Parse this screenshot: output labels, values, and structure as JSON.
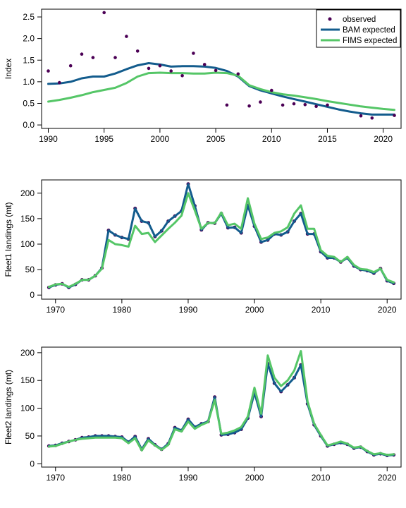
{
  "colors": {
    "observed": "#4b0055",
    "bam": "#135c8d",
    "fims": "#55c667"
  },
  "chart_data": [
    {
      "type": "line",
      "ylabel": "Index",
      "xlim": [
        1989.4,
        2021.6
      ],
      "ylim": [
        -0.08,
        2.68
      ],
      "xticks": [
        1990,
        1995,
        2000,
        2005,
        2010,
        2015,
        2020
      ],
      "yticks": [
        0.0,
        0.5,
        1.0,
        1.5,
        2.0,
        2.5
      ],
      "ytick_labels": [
        "0.0",
        "0.5",
        "1.0",
        "1.5",
        "2.0",
        "2.5"
      ],
      "legend": {
        "position": "top-right",
        "entries": [
          {
            "label": "observed",
            "kind": "point",
            "series": "observed"
          },
          {
            "label": "BAM expected",
            "kind": "line",
            "series": "bam"
          },
          {
            "label": "FIMS expected",
            "kind": "line",
            "series": "fims"
          }
        ]
      },
      "x": [
        1990,
        1991,
        1992,
        1993,
        1994,
        1995,
        1996,
        1997,
        1998,
        1999,
        2000,
        2001,
        2002,
        2003,
        2004,
        2005,
        2006,
        2007,
        2008,
        2009,
        2010,
        2011,
        2012,
        2013,
        2014,
        2015,
        2016,
        2017,
        2018,
        2019,
        2020,
        2021
      ],
      "series": [
        {
          "name": "observed",
          "key": "observed",
          "style": "points",
          "values": [
            1.25,
            0.98,
            1.37,
            1.64,
            1.56,
            2.6,
            1.56,
            2.05,
            1.71,
            1.31,
            1.37,
            1.25,
            1.14,
            1.66,
            1.4,
            1.26,
            0.46,
            1.18,
            0.44,
            0.53,
            0.8,
            0.46,
            0.49,
            0.47,
            0.43,
            0.46,
            null,
            null,
            0.21,
            0.16,
            null,
            0.22
          ]
        },
        {
          "name": "BAM expected",
          "key": "bam",
          "style": "line",
          "values": [
            0.95,
            0.96,
            1.0,
            1.08,
            1.12,
            1.12,
            1.19,
            1.29,
            1.38,
            1.43,
            1.4,
            1.35,
            1.36,
            1.36,
            1.35,
            1.32,
            1.25,
            1.12,
            0.9,
            0.8,
            0.73,
            0.66,
            0.6,
            0.54,
            0.48,
            0.42,
            0.36,
            0.31,
            0.27,
            0.24,
            0.24,
            0.24
          ]
        },
        {
          "name": "FIMS expected",
          "key": "fims",
          "style": "line",
          "values": [
            0.54,
            0.58,
            0.63,
            0.69,
            0.76,
            0.81,
            0.86,
            0.97,
            1.12,
            1.2,
            1.21,
            1.2,
            1.2,
            1.19,
            1.19,
            1.21,
            1.2,
            1.14,
            0.92,
            0.83,
            0.76,
            0.71,
            0.68,
            0.64,
            0.6,
            0.55,
            0.51,
            0.47,
            0.43,
            0.4,
            0.37,
            0.35
          ]
        }
      ]
    },
    {
      "type": "line",
      "ylabel": "Fleet1 landings (mt)",
      "xlim": [
        1967.9,
        2022.1
      ],
      "ylim": [
        -8,
        226
      ],
      "xticks": [
        1970,
        1980,
        1990,
        2000,
        2010,
        2020
      ],
      "yticks": [
        0,
        50,
        100,
        150,
        200
      ],
      "ytick_labels": [
        "0",
        "50",
        "100",
        "150",
        "200"
      ],
      "x": [
        1969,
        1970,
        1971,
        1972,
        1973,
        1974,
        1975,
        1976,
        1977,
        1978,
        1979,
        1980,
        1981,
        1982,
        1983,
        1984,
        1985,
        1986,
        1987,
        1988,
        1989,
        1990,
        1991,
        1992,
        1993,
        1994,
        1995,
        1996,
        1997,
        1998,
        1999,
        2000,
        2001,
        2002,
        2003,
        2004,
        2005,
        2006,
        2007,
        2008,
        2009,
        2010,
        2011,
        2012,
        2013,
        2014,
        2015,
        2016,
        2017,
        2018,
        2019,
        2020,
        2021
      ],
      "series": [
        {
          "name": "observed",
          "key": "observed",
          "style": "points",
          "values": [
            15,
            20,
            22,
            15,
            21,
            30,
            30,
            38,
            53,
            127,
            118,
            113,
            110,
            170,
            145,
            142,
            115,
            126,
            145,
            155,
            165,
            218,
            175,
            128,
            142,
            141,
            160,
            132,
            133,
            122,
            176,
            135,
            104,
            108,
            120,
            118,
            124,
            145,
            160,
            120,
            120,
            85,
            73,
            73,
            65,
            73,
            57,
            50,
            48,
            43,
            52,
            28,
            23
          ]
        },
        {
          "name": "BAM expected",
          "key": "bam",
          "style": "line",
          "values": [
            15,
            20,
            22,
            15,
            21,
            30,
            30,
            38,
            53,
            127,
            118,
            113,
            110,
            170,
            145,
            142,
            115,
            126,
            145,
            155,
            165,
            218,
            175,
            128,
            142,
            141,
            160,
            132,
            133,
            122,
            176,
            135,
            104,
            108,
            120,
            118,
            124,
            145,
            160,
            120,
            120,
            85,
            73,
            73,
            65,
            73,
            57,
            50,
            48,
            43,
            52,
            28,
            23
          ]
        },
        {
          "name": "FIMS expected",
          "key": "fims",
          "style": "line",
          "values": [
            16,
            21,
            22,
            16,
            22,
            30,
            30,
            38,
            52,
            108,
            100,
            98,
            95,
            136,
            120,
            122,
            104,
            117,
            130,
            142,
            156,
            200,
            166,
            130,
            142,
            141,
            162,
            137,
            140,
            130,
            190,
            140,
            110,
            113,
            122,
            125,
            133,
            160,
            176,
            130,
            130,
            88,
            77,
            75,
            65,
            75,
            59,
            51,
            50,
            45,
            52,
            30,
            25
          ]
        }
      ]
    },
    {
      "type": "line",
      "ylabel": "Fleet2 landings (mt)",
      "xlim": [
        1967.9,
        2022.1
      ],
      "ylim": [
        -6,
        210
      ],
      "xticks": [
        1970,
        1980,
        1990,
        2000,
        2010,
        2020
      ],
      "yticks": [
        0,
        50,
        100,
        150,
        200
      ],
      "ytick_labels": [
        "0",
        "50",
        "100",
        "150",
        "200"
      ],
      "x": [
        1969,
        1970,
        1971,
        1972,
        1973,
        1974,
        1975,
        1976,
        1977,
        1978,
        1979,
        1980,
        1981,
        1982,
        1983,
        1984,
        1985,
        1986,
        1987,
        1988,
        1989,
        1990,
        1991,
        1992,
        1993,
        1994,
        1995,
        1996,
        1997,
        1998,
        1999,
        2000,
        2001,
        2002,
        2003,
        2004,
        2005,
        2006,
        2007,
        2008,
        2009,
        2010,
        2011,
        2012,
        2013,
        2014,
        2015,
        2016,
        2017,
        2018,
        2019,
        2020,
        2021
      ],
      "series": [
        {
          "name": "observed",
          "key": "observed",
          "style": "points",
          "values": [
            32,
            33,
            37,
            40,
            43,
            47,
            48,
            50,
            50,
            50,
            49,
            48,
            39,
            49,
            26,
            45,
            34,
            26,
            36,
            65,
            60,
            80,
            66,
            72,
            76,
            120,
            52,
            53,
            56,
            62,
            82,
            128,
            85,
            180,
            145,
            130,
            142,
            155,
            178,
            108,
            70,
            50,
            32,
            35,
            38,
            35,
            28,
            30,
            22,
            16,
            18,
            15,
            16
          ]
        },
        {
          "name": "BAM expected",
          "key": "bam",
          "style": "line",
          "values": [
            32,
            33,
            37,
            40,
            43,
            47,
            48,
            50,
            50,
            50,
            49,
            48,
            39,
            49,
            26,
            45,
            34,
            26,
            36,
            65,
            60,
            80,
            66,
            72,
            76,
            120,
            52,
            53,
            56,
            62,
            82,
            128,
            85,
            180,
            145,
            130,
            142,
            155,
            178,
            108,
            70,
            50,
            32,
            35,
            38,
            35,
            28,
            30,
            22,
            16,
            18,
            15,
            16
          ]
        },
        {
          "name": "FIMS expected",
          "key": "fims",
          "style": "line",
          "values": [
            31,
            32,
            36,
            40,
            43,
            45,
            46,
            47,
            47,
            47,
            47,
            46,
            37,
            46,
            24,
            42,
            33,
            25,
            34,
            62,
            58,
            76,
            63,
            70,
            75,
            115,
            54,
            56,
            60,
            66,
            85,
            137,
            90,
            195,
            155,
            140,
            150,
            168,
            203,
            112,
            72,
            52,
            33,
            36,
            40,
            36,
            29,
            31,
            23,
            17,
            19,
            16,
            17
          ]
        }
      ]
    }
  ]
}
